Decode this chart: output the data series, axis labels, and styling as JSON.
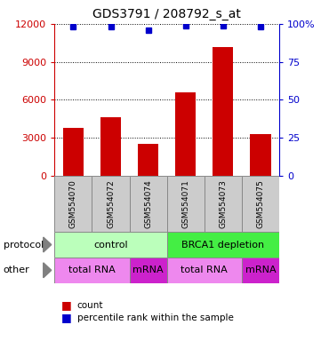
{
  "title": "GDS3791 / 208792_s_at",
  "samples": [
    "GSM554070",
    "GSM554072",
    "GSM554074",
    "GSM554071",
    "GSM554073",
    "GSM554075"
  ],
  "counts": [
    3800,
    4600,
    2500,
    6600,
    10200,
    3300
  ],
  "percentiles": [
    98,
    98,
    96,
    99,
    99,
    98
  ],
  "bar_color": "#cc0000",
  "dot_color": "#0000cc",
  "ylim_left": [
    0,
    12000
  ],
  "ylim_right": [
    0,
    100
  ],
  "yticks_left": [
    0,
    3000,
    6000,
    9000,
    12000
  ],
  "yticks_right": [
    0,
    25,
    50,
    75,
    100
  ],
  "ytick_labels_left": [
    "0",
    "3000",
    "6000",
    "9000",
    "12000"
  ],
  "ytick_labels_right": [
    "0",
    "25",
    "50",
    "75",
    "100%"
  ],
  "protocol_groups": [
    {
      "label": "control",
      "start": 0,
      "end": 3,
      "color": "#bbffbb"
    },
    {
      "label": "BRCA1 depletion",
      "start": 3,
      "end": 6,
      "color": "#44ee44"
    }
  ],
  "other_groups": [
    {
      "label": "total RNA",
      "start": 0,
      "end": 2,
      "color": "#ee88ee"
    },
    {
      "label": "mRNA",
      "start": 2,
      "end": 3,
      "color": "#cc22cc"
    },
    {
      "label": "total RNA",
      "start": 3,
      "end": 5,
      "color": "#ee88ee"
    },
    {
      "label": "mRNA",
      "start": 5,
      "end": 6,
      "color": "#cc22cc"
    }
  ],
  "legend_count_color": "#cc0000",
  "legend_dot_color": "#0000cc",
  "ylabel_left_color": "#cc0000",
  "ylabel_right_color": "#0000cc",
  "background": "#ffffff",
  "sample_box_color": "#cccccc",
  "sample_box_edge": "#888888"
}
